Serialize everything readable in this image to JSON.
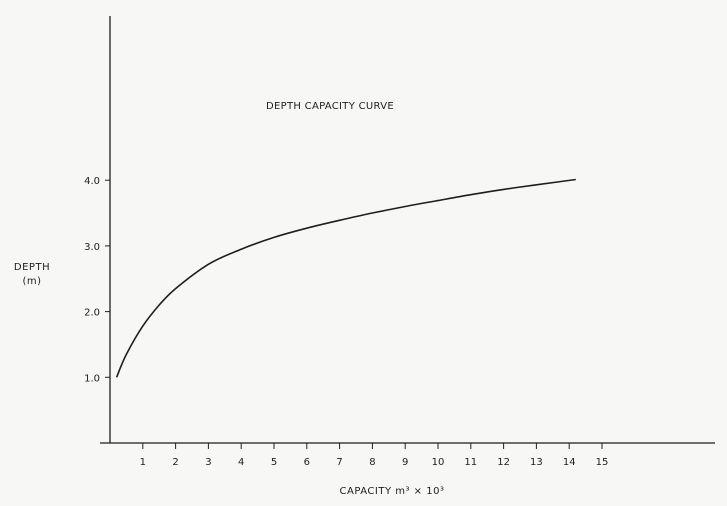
{
  "chart_data": {
    "type": "line",
    "title": "DEPTH CAPACITY CURVE",
    "xlabel": "CAPACITY  m³ × 10³",
    "ylabel": "DEPTH",
    "ylabel_unit": "(m)",
    "xlim": [
      0,
      15
    ],
    "ylim": [
      0,
      4
    ],
    "x_ticks": [
      1,
      2,
      3,
      4,
      5,
      6,
      7,
      8,
      9,
      10,
      11,
      12,
      13,
      14,
      15
    ],
    "y_ticks": [
      {
        "value": 1.0,
        "label": "1.0"
      },
      {
        "value": 2.0,
        "label": "2.0"
      },
      {
        "value": 3.0,
        "label": "3.0"
      },
      {
        "value": 4.0,
        "label": "4.0"
      }
    ],
    "grid": false,
    "series": [
      {
        "x": [
          0.2,
          0.5,
          1.0,
          1.5,
          2.0,
          3.0,
          4.0,
          5.0,
          6.0,
          7.0,
          8.0,
          9.0,
          10.0,
          11.0,
          12.0,
          13.0,
          14.2
        ],
        "y": [
          1.0,
          1.35,
          1.78,
          2.1,
          2.35,
          2.72,
          2.95,
          3.13,
          3.27,
          3.39,
          3.5,
          3.6,
          3.69,
          3.78,
          3.86,
          3.93,
          4.01
        ]
      }
    ]
  }
}
